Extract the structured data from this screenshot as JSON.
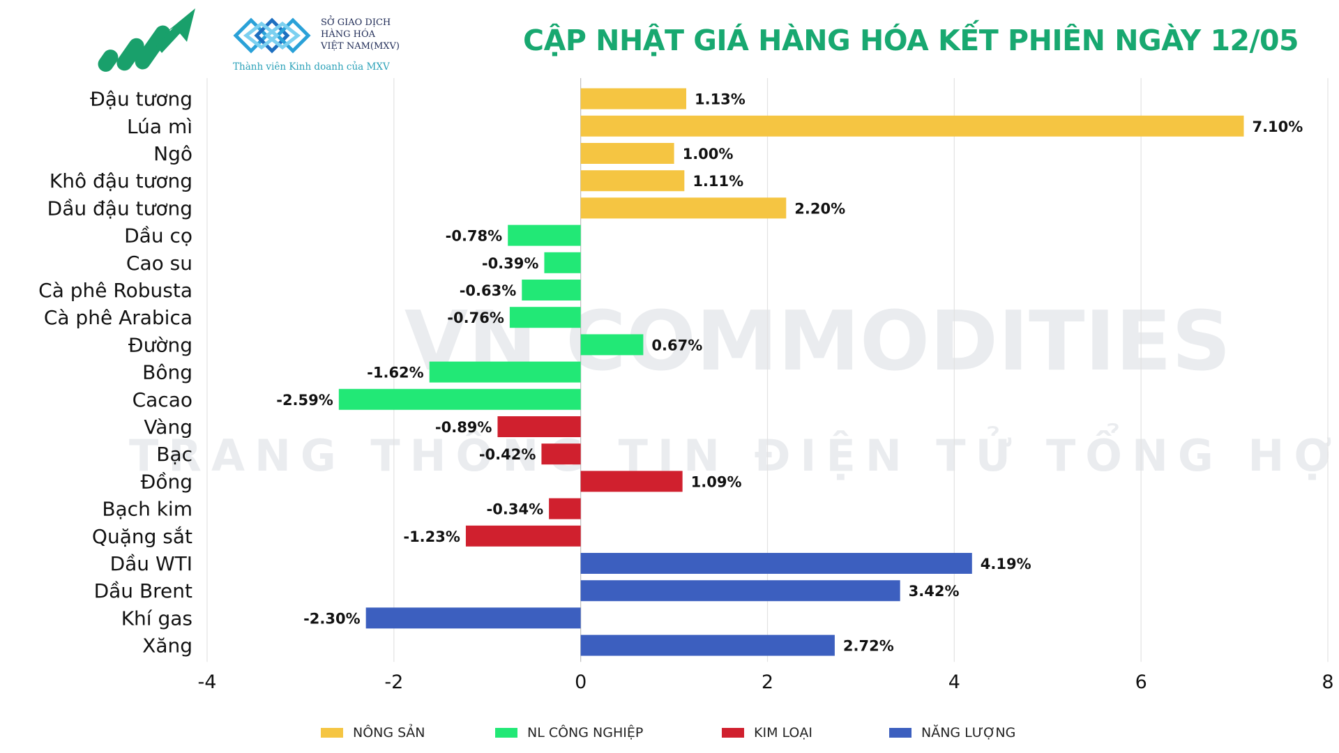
{
  "header": {
    "title": "CẬP NHẬT GIÁ HÀNG HÓA KẾT PHIÊN NGÀY 12/05",
    "logo_icon": "chart-growth-arrow",
    "mxv_line1": "SỞ GIAO DỊCH",
    "mxv_line2": "HÀNG HÓA",
    "mxv_line3": "VIỆT NAM(MXV)",
    "mxv_tagline": "Thành viên Kinh doanh của MXV"
  },
  "watermark": {
    "line1": "VN COMMODITIES",
    "line2": "TRANG THÔNG TIN ĐIỆN TỬ TỔNG HỢP"
  },
  "colors": {
    "nong_san": "#F5C542",
    "nl_cong_nghiep": "#22E876",
    "kim_loai": "#D0202E",
    "nang_luong": "#3C5FBF",
    "title": "#18A870"
  },
  "legend": [
    {
      "label": "NÔNG SẢN",
      "color": "#F5C542"
    },
    {
      "label": "NL CÔNG NGHIỆP",
      "color": "#22E876"
    },
    {
      "label": "KIM LOẠI",
      "color": "#D0202E"
    },
    {
      "label": "NĂNG LƯỢNG",
      "color": "#3C5FBF"
    }
  ],
  "chart_data": {
    "type": "bar",
    "orientation": "horizontal",
    "xlim": [
      -4,
      8
    ],
    "xticks": [
      -4,
      -2,
      0,
      2,
      4,
      6,
      8
    ],
    "grid": true,
    "legend_position": "bottom",
    "categories": [
      "Đậu tương",
      "Lúa mì",
      "Ngô",
      "Khô đậu tương",
      "Dầu đậu tương",
      "Dầu cọ",
      "Cao su",
      "Cà phê Robusta",
      "Cà phê Arabica",
      "Đường",
      "Bông",
      "Cacao",
      "Vàng",
      "Bạc",
      "Đồng",
      "Bạch kim",
      "Quặng sắt",
      "Dầu WTI",
      "Dầu Brent",
      "Khí gas",
      "Xăng"
    ],
    "values": [
      1.13,
      7.1,
      1.0,
      1.11,
      2.2,
      -0.78,
      -0.39,
      -0.63,
      -0.76,
      0.67,
      -1.62,
      -2.59,
      -0.89,
      -0.42,
      1.09,
      -0.34,
      -1.23,
      4.19,
      3.42,
      -2.3,
      2.72
    ],
    "value_labels": [
      "1.13%",
      "7.10%",
      "1.00%",
      "1.11%",
      "2.20%",
      "-0.78%",
      "-0.39%",
      "-0.63%",
      "-0.76%",
      "0.67%",
      "-1.62%",
      "-2.59%",
      "-0.89%",
      "-0.42%",
      "1.09%",
      "-0.34%",
      "-1.23%",
      "4.19%",
      "3.42%",
      "-2.30%",
      "2.72%"
    ],
    "groups": [
      "NÔNG SẢN",
      "NÔNG SẢN",
      "NÔNG SẢN",
      "NÔNG SẢN",
      "NÔNG SẢN",
      "NL CÔNG NGHIỆP",
      "NL CÔNG NGHIỆP",
      "NL CÔNG NGHIỆP",
      "NL CÔNG NGHIỆP",
      "NL CÔNG NGHIỆP",
      "NL CÔNG NGHIỆP",
      "NL CÔNG NGHIỆP",
      "KIM LOẠI",
      "KIM LOẠI",
      "KIM LOẠI",
      "KIM LOẠI",
      "KIM LOẠI",
      "NĂNG LƯỢNG",
      "NĂNG LƯỢNG",
      "NĂNG LƯỢNG",
      "NĂNG LƯỢNG"
    ]
  }
}
